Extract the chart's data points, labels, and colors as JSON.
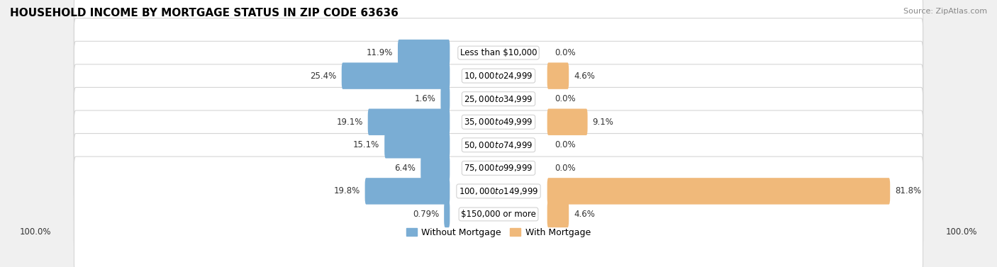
{
  "title": "HOUSEHOLD INCOME BY MORTGAGE STATUS IN ZIP CODE 63636",
  "source": "Source: ZipAtlas.com",
  "categories": [
    "Less than $10,000",
    "$10,000 to $24,999",
    "$25,000 to $34,999",
    "$35,000 to $49,999",
    "$50,000 to $74,999",
    "$75,000 to $99,999",
    "$100,000 to $149,999",
    "$150,000 or more"
  ],
  "without_mortgage": [
    11.9,
    25.4,
    1.6,
    19.1,
    15.1,
    6.4,
    19.8,
    0.79
  ],
  "with_mortgage": [
    0.0,
    4.6,
    0.0,
    9.1,
    0.0,
    0.0,
    81.8,
    4.6
  ],
  "without_mortgage_labels": [
    "11.9%",
    "25.4%",
    "1.6%",
    "19.1%",
    "15.1%",
    "6.4%",
    "19.8%",
    "0.79%"
  ],
  "with_mortgage_labels": [
    "0.0%",
    "4.6%",
    "0.0%",
    "9.1%",
    "0.0%",
    "0.0%",
    "81.8%",
    "4.6%"
  ],
  "color_without": "#7aadd4",
  "color_with": "#f0b97a",
  "bg_color": "#f0f0f0",
  "row_bg_color": "#e8e8e8",
  "row_border_color": "#cccccc",
  "axis_label_left": "100.0%",
  "axis_label_right": "100.0%",
  "max_val": 100.0,
  "title_fontsize": 11,
  "label_fontsize": 8.5,
  "legend_fontsize": 9,
  "value_fontsize": 8.5
}
